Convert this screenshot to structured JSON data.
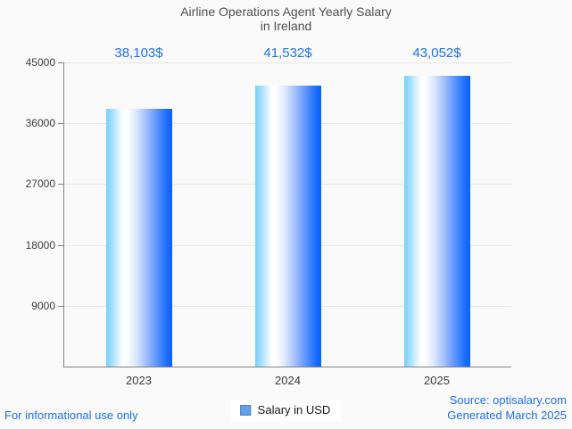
{
  "header": {
    "title_line1": "Airline Operations Agent Yearly Salary",
    "title_line2": "in Ireland"
  },
  "legend": {
    "label": "Salary in USD",
    "swatch_color": "#66a0e8"
  },
  "footer": {
    "disclaimer": "For informational use only",
    "source_line1": "Source: optisalary.com",
    "source_line2": "Generated March 2025"
  },
  "colors": {
    "accent_text": "#1e6fe8",
    "title_text": "#4f4f4f",
    "axis_line": "#848484",
    "gridline": "#e6e6e6",
    "bar_gradient_left": "#79d0f8",
    "bar_gradient_middle": "#ffffff",
    "bar_gradient_right": "#0d66fb",
    "background": "#fafafa"
  },
  "chart_data": {
    "type": "bar",
    "title": "Airline Operations Agent Yearly Salary in Ireland",
    "categories": [
      "2023",
      "2024",
      "2025"
    ],
    "series": [
      {
        "name": "Salary in USD",
        "values": [
          38103,
          41532,
          43052
        ]
      }
    ],
    "value_labels": [
      "38,103$",
      "41,532$",
      "43,052$"
    ],
    "xlabel": "",
    "ylabel": "",
    "ylim": [
      0,
      45000
    ],
    "yticks": [
      9000,
      18000,
      27000,
      36000,
      45000
    ],
    "grid": true,
    "legend_position": "bottom-center"
  }
}
